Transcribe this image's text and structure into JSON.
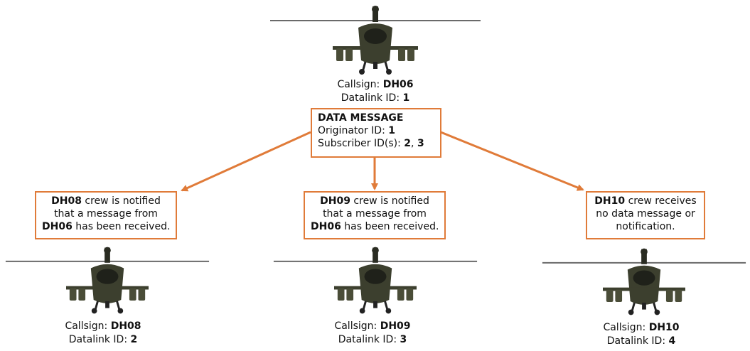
{
  "colors": {
    "accent": "#e07b39",
    "helicopter_body": "#3c3f2e",
    "helicopter_dark": "#1f211a",
    "rotor": "#5b5b5b"
  },
  "helicopters": [
    {
      "id": "dh06",
      "callsign_label": "Callsign:",
      "callsign": "DH06",
      "datalink_label": "Datalink ID:",
      "datalink_id": "1"
    },
    {
      "id": "dh08",
      "callsign_label": "Callsign:",
      "callsign": "DH08",
      "datalink_label": "Datalink ID:",
      "datalink_id": "2"
    },
    {
      "id": "dh09",
      "callsign_label": "Callsign:",
      "callsign": "DH09",
      "datalink_label": "Datalink ID:",
      "datalink_id": "3"
    },
    {
      "id": "dh10",
      "callsign_label": "Callsign:",
      "callsign": "DH10",
      "datalink_label": "Datalink ID:",
      "datalink_id": "4"
    }
  ],
  "data_message": {
    "title": "DATA MESSAGE",
    "originator_label": "Originator ID:",
    "originator_id": "1",
    "subscriber_label": "Subscriber ID(s):",
    "subscriber_id_a": "2",
    "subscriber_sep": ",",
    "subscriber_id_b": "3"
  },
  "notifications": [
    {
      "id": "dh08",
      "callsign_a": "DH08",
      "line1_rest": " crew is notified",
      "line2": "that a message from",
      "callsign_b": "DH06",
      "line3_rest": " has been received."
    },
    {
      "id": "dh09",
      "callsign_a": "DH09",
      "line1_rest": " crew is notified",
      "line2": "that a message from",
      "callsign_b": "DH06",
      "line3_rest": " has been received."
    },
    {
      "id": "dh10",
      "callsign_a": "DH10",
      "line1_rest": " crew receives",
      "line2": "no data message or",
      "line3": "notification."
    }
  ]
}
